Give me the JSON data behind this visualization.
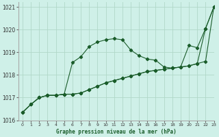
{
  "title": "Graphe pression niveau de la mer (hPa)",
  "bg_color": "#cff0e8",
  "grid_color": "#b0d8c8",
  "line_color": "#1a5c2a",
  "xlim": [
    -0.5,
    23
  ],
  "ylim": [
    1016,
    1021.2
  ],
  "yticks": [
    1016,
    1017,
    1018,
    1019,
    1020,
    1021
  ],
  "xticks": [
    0,
    1,
    2,
    3,
    4,
    5,
    6,
    7,
    8,
    9,
    10,
    11,
    12,
    13,
    14,
    15,
    16,
    17,
    18,
    19,
    20,
    21,
    22,
    23
  ],
  "series1_x": [
    0,
    1,
    2,
    3,
    4,
    5,
    6,
    7,
    8,
    9,
    10,
    11,
    12,
    13,
    14,
    15,
    16,
    17,
    18,
    19,
    20,
    21,
    22,
    23
  ],
  "series1_y": [
    1016.35,
    1016.7,
    1017.0,
    1017.1,
    1017.1,
    1017.15,
    1017.15,
    1017.2,
    1017.35,
    1017.5,
    1017.65,
    1017.75,
    1017.85,
    1017.95,
    1018.05,
    1018.15,
    1018.2,
    1018.25,
    1018.3,
    1018.35,
    1018.4,
    1018.5,
    1018.6,
    1021.0
  ],
  "series2_x": [
    0,
    1,
    2,
    3,
    4,
    5,
    6,
    7,
    8,
    9,
    10,
    11,
    12,
    13,
    14,
    15,
    16,
    17,
    18,
    19,
    20,
    21,
    22,
    23
  ],
  "series2_y": [
    1016.35,
    1016.7,
    1017.0,
    1017.1,
    1017.1,
    1017.15,
    1018.55,
    1018.8,
    1019.25,
    1019.45,
    1019.55,
    1019.6,
    1019.55,
    1019.1,
    1018.85,
    1018.7,
    1018.65,
    1018.35,
    1018.3,
    1018.35,
    1019.3,
    1019.2,
    1020.05,
    1021.0
  ],
  "series3_x": [
    0,
    1,
    2,
    3,
    4,
    5,
    6,
    7,
    8,
    9,
    10,
    11,
    12,
    13,
    14,
    15,
    16,
    17,
    18,
    19,
    20,
    21,
    22,
    23
  ],
  "series3_y": [
    1016.35,
    1016.7,
    1017.0,
    1017.1,
    1017.1,
    1017.15,
    1017.15,
    1017.2,
    1017.35,
    1017.5,
    1017.65,
    1017.75,
    1017.85,
    1017.95,
    1018.05,
    1018.15,
    1018.2,
    1018.25,
    1018.3,
    1018.35,
    1018.4,
    1018.5,
    1020.05,
    1021.0
  ]
}
